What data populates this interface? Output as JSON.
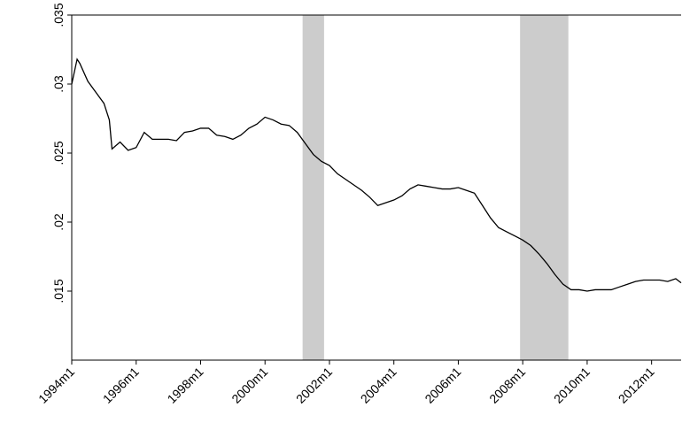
{
  "chart_data": {
    "type": "line",
    "x": [
      "1994m1",
      "1994m3",
      "1994m4",
      "1994m7",
      "1994m10",
      "1995m1",
      "1995m3",
      "1995m4",
      "1995m7",
      "1995m10",
      "1996m1",
      "1996m4",
      "1996m7",
      "1996m10",
      "1997m1",
      "1997m4",
      "1997m7",
      "1997m10",
      "1998m1",
      "1998m4",
      "1998m7",
      "1998m10",
      "1999m1",
      "1999m4",
      "1999m7",
      "1999m10",
      "2000m1",
      "2000m4",
      "2000m7",
      "2000m10",
      "2001m1",
      "2001m4",
      "2001m7",
      "2001m10",
      "2002m1",
      "2002m4",
      "2002m7",
      "2002m10",
      "2003m1",
      "2003m4",
      "2003m7",
      "2003m10",
      "2004m1",
      "2004m4",
      "2004m7",
      "2004m10",
      "2005m1",
      "2005m4",
      "2005m7",
      "2005m10",
      "2006m1",
      "2006m4",
      "2006m7",
      "2006m10",
      "2007m1",
      "2007m4",
      "2007m7",
      "2007m10",
      "2008m1",
      "2008m4",
      "2008m7",
      "2008m10",
      "2009m1",
      "2009m4",
      "2009m7",
      "2009m10",
      "2010m1",
      "2010m4",
      "2010m7",
      "2010m10",
      "2011m1",
      "2011m4",
      "2011m7",
      "2011m10",
      "2012m1",
      "2012m4",
      "2012m7",
      "2012m10",
      "2012m12"
    ],
    "series": [
      {
        "color": "#000000",
        "values": [
          0.03,
          0.0318,
          0.0315,
          0.0302,
          0.0294,
          0.0286,
          0.0274,
          0.0253,
          0.0258,
          0.0252,
          0.0254,
          0.0265,
          0.026,
          0.026,
          0.026,
          0.0259,
          0.0265,
          0.0266,
          0.0268,
          0.0268,
          0.0263,
          0.0262,
          0.026,
          0.0263,
          0.0268,
          0.0271,
          0.0276,
          0.0274,
          0.0271,
          0.027,
          0.0265,
          0.0257,
          0.0249,
          0.0244,
          0.0241,
          0.0235,
          0.0231,
          0.0227,
          0.0223,
          0.0218,
          0.0212,
          0.0214,
          0.0216,
          0.0219,
          0.0224,
          0.0227,
          0.0226,
          0.0225,
          0.0224,
          0.0224,
          0.0225,
          0.0223,
          0.0221,
          0.0212,
          0.0203,
          0.0196,
          0.0193,
          0.019,
          0.0187,
          0.0183,
          0.0177,
          0.017,
          0.0162,
          0.0155,
          0.0151,
          0.0151,
          0.015,
          0.0151,
          0.0151,
          0.0151,
          0.0153,
          0.0155,
          0.0157,
          0.0158,
          0.0158,
          0.0158,
          0.0157,
          0.0159,
          0.0156
        ]
      }
    ],
    "shaded": [
      [
        "2001m3",
        "2001m11"
      ],
      [
        "2007m12",
        "2009m6"
      ]
    ],
    "shade_color": "#cccccc",
    "xlim": [
      "1994m1",
      "2012m12"
    ],
    "xticks": [
      "1994m1",
      "1996m1",
      "1998m1",
      "2000m1",
      "2002m1",
      "2004m1",
      "2006m1",
      "2008m1",
      "2010m1",
      "2012m1"
    ],
    "ylim": [
      0.01,
      0.035
    ],
    "yticks": [
      {
        "value": 0.015,
        "label": ".015"
      },
      {
        "value": 0.02,
        "label": ".02"
      },
      {
        "value": 0.025,
        "label": ".025"
      },
      {
        "value": 0.03,
        "label": ".03"
      },
      {
        "value": 0.035,
        "label": ".035"
      }
    ]
  }
}
